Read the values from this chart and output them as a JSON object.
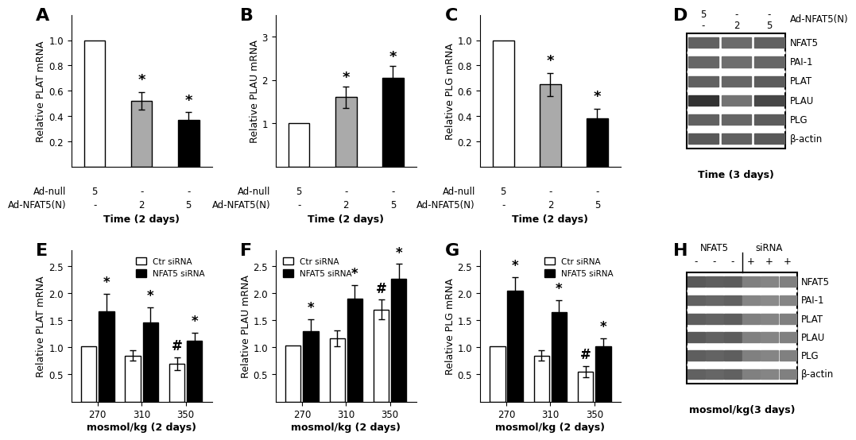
{
  "panel_A": {
    "label": "A",
    "values": [
      1.0,
      0.52,
      0.37
    ],
    "errors": [
      0.0,
      0.07,
      0.06
    ],
    "colors": [
      "white",
      "#aaaaaa",
      "black"
    ],
    "ylabel": "Relative PLAT mRNA",
    "ylim": [
      0,
      1.2
    ],
    "yticks": [
      0.2,
      0.4,
      0.6,
      0.8,
      1.0
    ],
    "x_labels": [
      "5",
      "-",
      "-"
    ],
    "x_labels2": [
      "-",
      "2",
      "5"
    ],
    "xlabel_row1": "Ad-null",
    "xlabel_row2": "Ad-NFAT5(N)",
    "xlabel_bottom": "Time (2 days)",
    "sig_labels": [
      "",
      "*",
      "*"
    ]
  },
  "panel_B": {
    "label": "B",
    "values": [
      1.0,
      1.6,
      2.05
    ],
    "errors": [
      0.0,
      0.25,
      0.28
    ],
    "colors": [
      "white",
      "#aaaaaa",
      "black"
    ],
    "ylabel": "Relative PLAU mRNA",
    "ylim": [
      0,
      3.5
    ],
    "yticks": [
      1,
      2,
      3
    ],
    "x_labels": [
      "5",
      "-",
      "-"
    ],
    "x_labels2": [
      "-",
      "2",
      "5"
    ],
    "xlabel_row1": "Ad-null",
    "xlabel_row2": "Ad-NFAT5(N)",
    "xlabel_bottom": "Time (2 days)",
    "sig_labels": [
      "",
      "*",
      "*"
    ]
  },
  "panel_C": {
    "label": "C",
    "values": [
      1.0,
      0.65,
      0.38
    ],
    "errors": [
      0.0,
      0.09,
      0.08
    ],
    "colors": [
      "white",
      "#aaaaaa",
      "black"
    ],
    "ylabel": "Relative PLG mRNA",
    "ylim": [
      0,
      1.2
    ],
    "yticks": [
      0.2,
      0.4,
      0.6,
      0.8,
      1.0
    ],
    "x_labels": [
      "5",
      "-",
      "-"
    ],
    "x_labels2": [
      "-",
      "2",
      "5"
    ],
    "xlabel_row1": "Ad-null",
    "xlabel_row2": "Ad-NFAT5(N)",
    "xlabel_bottom": "Time (2 days)",
    "sig_labels": [
      "",
      "*",
      "*"
    ]
  },
  "panel_D": {
    "label": "D",
    "title": "Time (3 days)",
    "col_labels_top": [
      "5",
      "-",
      "-"
    ],
    "col_labels_mid": [
      "-",
      "2",
      "5"
    ],
    "row_label_top": "Ad-NFAT5(N)",
    "band_labels": [
      "NFAT5",
      "PAI-1",
      "PLAT",
      "PLAU",
      "PLG",
      "β-actin"
    ],
    "n_cols": 3,
    "n_rows": 6
  },
  "panel_E": {
    "label": "E",
    "values_ctr": [
      1.02,
      0.85,
      0.7
    ],
    "values_nfat5": [
      1.67,
      1.46,
      1.12
    ],
    "errors_ctr": [
      0.0,
      0.1,
      0.12
    ],
    "errors_nfat5": [
      0.32,
      0.28,
      0.15
    ],
    "ylabel": "Relative PLAT mRNA",
    "ylim": [
      0,
      2.8
    ],
    "yticks": [
      0.5,
      1.0,
      1.5,
      2.0,
      2.5
    ],
    "x_labels": [
      "270",
      "310",
      "350"
    ],
    "xlabel_bottom": "mosmol/kg (2 days)",
    "sig_ctr": [
      "",
      "",
      "#"
    ],
    "sig_nfat5": [
      "*",
      "*",
      "*"
    ]
  },
  "panel_F": {
    "label": "F",
    "values_ctr": [
      1.03,
      1.17,
      1.7
    ],
    "values_nfat5": [
      1.3,
      1.9,
      2.27
    ],
    "errors_ctr": [
      0.0,
      0.15,
      0.18
    ],
    "errors_nfat5": [
      0.22,
      0.25,
      0.27
    ],
    "ylabel": "Relative PLAU mRNA",
    "ylim": [
      0,
      2.8
    ],
    "yticks": [
      0.5,
      1.0,
      1.5,
      2.0,
      2.5
    ],
    "x_labels": [
      "270",
      "310",
      "350"
    ],
    "xlabel_bottom": "mosmol/kg (2 days)",
    "sig_ctr": [
      "",
      "",
      "#"
    ],
    "sig_nfat5": [
      "*",
      "*",
      "*"
    ]
  },
  "panel_G": {
    "label": "G",
    "values_ctr": [
      1.02,
      0.85,
      0.55
    ],
    "values_nfat5": [
      2.05,
      1.65,
      1.02
    ],
    "errors_ctr": [
      0.0,
      0.1,
      0.1
    ],
    "errors_nfat5": [
      0.25,
      0.22,
      0.15
    ],
    "ylabel": "Relative PLG mRNA",
    "ylim": [
      0,
      2.8
    ],
    "yticks": [
      0.5,
      1.0,
      1.5,
      2.0,
      2.5
    ],
    "x_labels": [
      "270",
      "310",
      "350"
    ],
    "xlabel_bottom": "mosmol/kg (2 days)",
    "sig_ctr": [
      "",
      "",
      "#"
    ],
    "sig_nfat5": [
      "*",
      "*",
      "*"
    ]
  },
  "panel_H": {
    "label": "H",
    "title": "mosmol/kg(3 days)",
    "col_labels_top": [
      "-",
      "-",
      "-",
      "+",
      "+",
      "+"
    ],
    "row_label_top": "NFAT5",
    "row_label_top2": "siRNA",
    "band_labels": [
      "NFAT5",
      "PAI-1",
      "PLAT",
      "PLAU",
      "PLG",
      "β-actin"
    ],
    "n_cols": 6,
    "n_rows": 6
  },
  "bar_edgecolor": "black",
  "background_color": "white",
  "fontsize_axis": 9,
  "fontsize_tick": 8.5
}
